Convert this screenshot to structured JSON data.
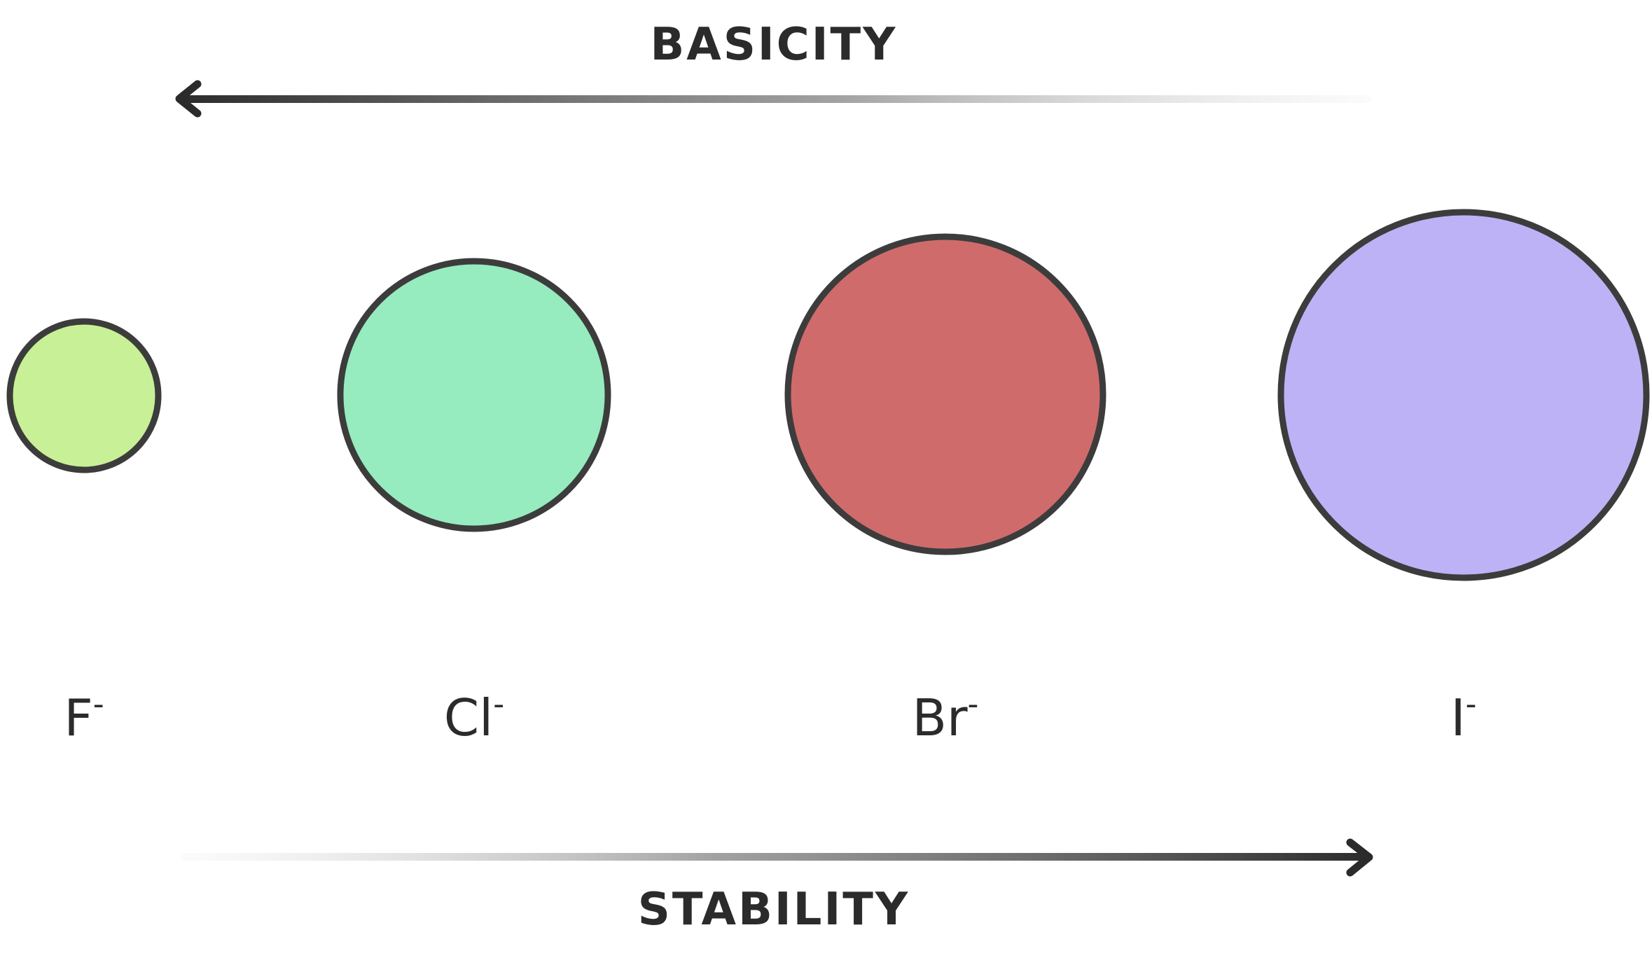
{
  "top_arrow": {
    "label": "BASICITY",
    "direction": "left"
  },
  "bottom_arrow": {
    "label": "STABILITY",
    "direction": "right"
  },
  "ions": [
    {
      "symbol": "F",
      "charge": "-",
      "color": "#c8f096"
    },
    {
      "symbol": "Cl",
      "charge": "-",
      "color": "#96ecbe"
    },
    {
      "symbol": "Br",
      "charge": "-",
      "color": "#d06b6c"
    },
    {
      "symbol": "I",
      "charge": "-",
      "color": "#bdb2f6"
    }
  ],
  "colors": {
    "outline": "#3c3c3c",
    "arrow": "#2b2b2b",
    "background": "#ffffff"
  }
}
